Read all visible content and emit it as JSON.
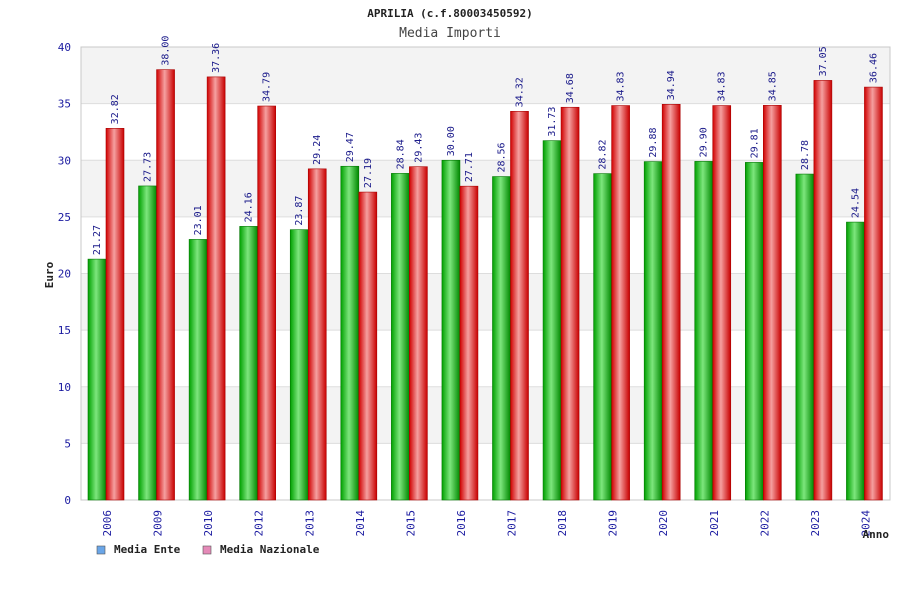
{
  "chart_data": {
    "type": "bar",
    "title": "APRILIA (c.f.80003450592)",
    "subtitle": "Media Importi",
    "xlabel": "Anno",
    "ylabel": "Euro",
    "ylim": [
      0,
      40
    ],
    "yticks": [
      0,
      5,
      10,
      15,
      20,
      25,
      30,
      35,
      40
    ],
    "grid": true,
    "legend_position": "bottom-left",
    "categories": [
      "2006",
      "2009",
      "2010",
      "2012",
      "2013",
      "2014",
      "2015",
      "2016",
      "2017",
      "2018",
      "2019",
      "2020",
      "2021",
      "2022",
      "2023",
      "2024"
    ],
    "series": [
      {
        "name": "Media Ente",
        "color": "#00b000",
        "legend_color": "#6aa6e8",
        "values": [
          21.27,
          27.73,
          23.01,
          24.16,
          23.87,
          29.47,
          28.84,
          30.0,
          28.56,
          31.73,
          28.82,
          29.88,
          29.9,
          29.81,
          28.78,
          24.54
        ],
        "labels": [
          "21.27",
          "27.73",
          "23.01",
          "24.16",
          "23.87",
          "29.47",
          "28.84",
          "30.00",
          "28.56",
          "31.73",
          "28.82",
          "29.88",
          "29.90",
          "29.81",
          "28.78",
          "24.54"
        ]
      },
      {
        "name": "Media Nazionale",
        "color": "#e01010",
        "legend_color": "#e58ab8",
        "values": [
          32.82,
          38.0,
          37.36,
          34.79,
          29.24,
          27.19,
          29.43,
          27.71,
          34.32,
          34.68,
          34.83,
          34.94,
          34.83,
          34.85,
          37.05,
          36.46
        ],
        "labels": [
          "32.82",
          "38.00",
          "37.36",
          "34.79",
          "29.24",
          "27.19",
          "29.43",
          "27.71",
          "34.32",
          "34.68",
          "34.83",
          "34.94",
          "34.83",
          "34.85",
          "37.05",
          "36.46"
        ]
      }
    ]
  }
}
